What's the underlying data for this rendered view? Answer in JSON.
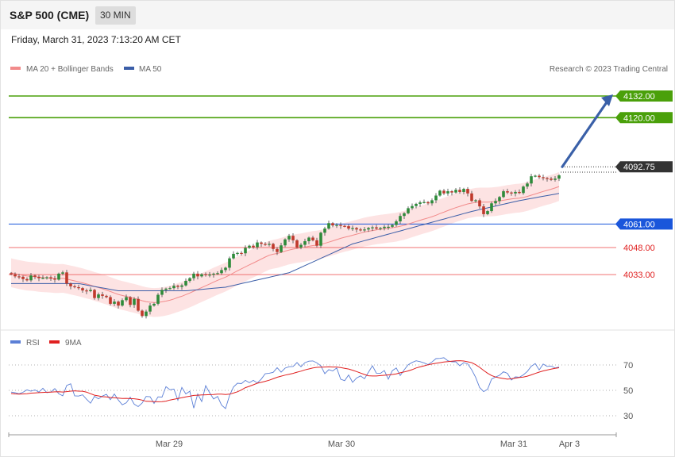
{
  "header": {
    "title": "S&P 500 (CME)",
    "timeframe": "30 MIN"
  },
  "datetime": "Friday, March 31, 2023 7:13:20 AM CET",
  "credit": "Research © 2023 Trading Central",
  "legend_price": [
    {
      "label": "MA 20 + Bollinger Bands",
      "color": "#f28b8b"
    },
    {
      "label": "MA 50",
      "color": "#3b5ea8"
    }
  ],
  "legend_rsi": [
    {
      "label": "RSI",
      "color": "#5b7fd6"
    },
    {
      "label": "9MA",
      "color": "#e02020"
    }
  ],
  "colors": {
    "up": "#2e8b3a",
    "down": "#c0392b",
    "resistance": "#4aa00a",
    "pivot": "#1a56db",
    "support": "#f07070",
    "current": "#333333",
    "arrow": "#3a60a8",
    "band_fill": "#fde3e3"
  },
  "chart_data": {
    "type": "candlestick",
    "price_axis": {
      "ylim": [
        4004,
        4143
      ]
    },
    "levels": [
      {
        "value": 4132.0,
        "label": "4132.00",
        "kind": "resistance"
      },
      {
        "value": 4120.0,
        "label": "4120.00",
        "kind": "resistance"
      },
      {
        "value": 4092.75,
        "label": "4092.75",
        "kind": "current"
      },
      {
        "value": 4061.0,
        "label": "4061.00",
        "kind": "pivot"
      },
      {
        "value": 4048.0,
        "label": "4048.00",
        "kind": "support"
      },
      {
        "value": 4033.0,
        "label": "4033.00",
        "kind": "support"
      }
    ],
    "x_ticks": [
      "Mar 29",
      "Mar 30",
      "Mar 31",
      "Apr 3"
    ],
    "close": [
      4033.2,
      4032.0,
      4031.8,
      4030.5,
      4029.8,
      4032.5,
      4031.8,
      4031.0,
      4031.2,
      4031.5,
      4030.8,
      4030.2,
      4033.5,
      4034.2,
      4028.0,
      4026.5,
      4026.0,
      4025.5,
      4024.2,
      4023.8,
      4024.5,
      4020.0,
      4022.0,
      4021.2,
      4020.5,
      4016.8,
      4018.0,
      4015.8,
      4018.8,
      4020.5,
      4016.2,
      4019.5,
      4013.0,
      4010.0,
      4012.5,
      4015.8,
      4016.8,
      4021.8,
      4024.5,
      4025.2,
      4025.5,
      4026.8,
      4026.2,
      4027.0,
      4029.5,
      4031.0,
      4033.5,
      4032.0,
      4033.2,
      4032.8,
      4033.0,
      4033.5,
      4033.8,
      4035.5,
      4036.8,
      4042.0,
      4044.5,
      4045.0,
      4044.8,
      4047.8,
      4049.0,
      4048.2,
      4050.8,
      4050.0,
      4049.5,
      4050.0,
      4047.2,
      4045.5,
      4049.2,
      4052.5,
      4054.5,
      4052.0,
      4048.0,
      4049.5,
      4051.5,
      4053.5,
      4052.0,
      4049.0,
      4056.2,
      4058.5,
      4061.5,
      4060.2,
      4060.5,
      4060.0,
      4059.8,
      4058.5,
      4058.8,
      4058.0,
      4057.5,
      4058.0,
      4058.8,
      4059.2,
      4058.5,
      4058.8,
      4059.5,
      4059.5,
      4060.5,
      4062.5,
      4065.5,
      4067.0,
      4069.8,
      4071.0,
      4072.2,
      4073.0,
      4073.2,
      4072.5,
      4074.2,
      4076.8,
      4079.5,
      4078.0,
      4079.2,
      4078.5,
      4080.0,
      4078.8,
      4080.5,
      4078.0,
      4073.8,
      4074.2,
      4070.8,
      4066.5,
      4068.2,
      4072.5,
      4073.8,
      4076.0,
      4079.2,
      4078.5,
      4078.0,
      4078.8,
      4078.2,
      4081.8,
      4083.5,
      4087.5,
      4087.8,
      4087.0,
      4086.5,
      4086.2,
      4085.5,
      4086.2,
      4088.0
    ],
    "ma20": [
      4034,
      4033.5,
      4033,
      4032.6,
      4032.2,
      4032,
      4031.8,
      4031.5,
      4031.3,
      4031.2,
      4031,
      4030.8,
      4030.8,
      4030.9,
      4030.5,
      4030,
      4029.5,
      4029,
      4028.4,
      4027.8,
      4027.2,
      4026.4,
      4025.8,
      4025.1,
      4024.4,
      4023.6,
      4022.8,
      4022,
      4021.4,
      4020.9,
      4020.3,
      4019.8,
      4019.2,
      4018.5,
      4018,
      4017.7,
      4017.5,
      4017.6,
      4017.9,
      4018.3,
      4018.8,
      4019.5,
      4020.3,
      4021,
      4021.9,
      4022.8,
      4023.8,
      4024.8,
      4025.8,
      4026.8,
      4027.8,
      4028.8,
      4029.8,
      4030.7,
      4031.6,
      4032.7,
      4033.9,
      4035.1,
      4036.2,
      4037.3,
      4038.4,
      4039.4,
      4040.5,
      4041.6,
      4042.7,
      4043.7,
      4044.3,
      4044.7,
      4045.3,
      4046,
      4046.6,
      4047.1,
      4047.5,
      4047.8,
      4048.2,
      4048.7,
      4049.1,
      4049.3,
      4049.8,
      4050.3,
      4051,
      4051.7,
      4052.4,
      4053.1,
      4053.7,
      4054.2,
      4054.8,
      4055.4,
      4056,
      4056.6,
      4057,
      4057.4,
      4057.8,
      4058.1,
      4058.4,
      4058.7,
      4059,
      4059.3,
      4059.8,
      4060.3,
      4061,
      4061.7,
      4062.4,
      4063.1,
      4063.8,
      4064.4,
      4065.1,
      4065.9,
      4066.8,
      4067.6,
      4068.5,
      4069.3,
      4070.1,
      4070.8,
      4071.5,
      4072.2,
      4072.6,
      4073,
      4073.2,
      4073.2,
      4073.2,
      4073.3,
      4073.5,
      4073.8,
      4074.2,
      4074.6,
      4074.9,
      4075.2,
      4075.4,
      4075.8,
      4076.3,
      4077,
      4077.7,
      4078.4,
      4079.1,
      4079.7,
      4080.3,
      4081,
      4081.8
    ],
    "ma50": [
      4028.0,
      4028.0,
      4028.0,
      4028.0,
      4028.0,
      4028.0,
      4028.0,
      4028.0,
      4028.0,
      4028.0,
      4028.0,
      4028.0,
      4028.0,
      4028.0,
      4028.0,
      4028.0,
      4028.0,
      4028.0,
      4027.6,
      4027.2,
      4026.8,
      4026.4,
      4026.0,
      4025.6,
      4025.2,
      4024.8,
      4024.4,
      4024.0,
      4024.0,
      4024.0,
      4024.0,
      4024.0,
      4024.0,
      4024.0,
      4024.0,
      4024.0,
      4024.0,
      4024.0,
      4024.0,
      4024.0,
      4024.0,
      4024.0,
      4024.0,
      4024.0,
      4024.0,
      4024.2,
      4024.4,
      4024.6,
      4024.8,
      4025.0,
      4025.2,
      4025.4,
      4025.6,
      4025.8,
      4026.0,
      4026.5,
      4027.0,
      4027.5,
      4028.0,
      4028.5,
      4029.0,
      4029.5,
      4030.0,
      4030.5,
      4031.0,
      4031.5,
      4032.0,
      4032.5,
      4033.0,
      4033.5,
      4034.0,
      4035.0,
      4036.0,
      4037.0,
      4038.0,
      4039.0,
      4040.0,
      4041.0,
      4042.0,
      4043.0,
      4044.0,
      4045.0,
      4046.0,
      4047.0,
      4048.0,
      4049.0,
      4050.0,
      4050.6,
      4051.2,
      4051.8,
      4052.4,
      4053.0,
      4053.6,
      4054.2,
      4054.8,
      4055.4,
      4056.0,
      4056.6,
      4057.2,
      4057.8,
      4058.4,
      4059.0,
      4059.6,
      4060.2,
      4060.8,
      4061.4,
      4062.0,
      4062.6,
      4063.2,
      4063.8,
      4064.4,
      4065.0,
      4065.6,
      4066.2,
      4066.8,
      4067.4,
      4068.0,
      4068.5,
      4069.0,
      4069.5,
      4070.0,
      4070.5,
      4071.0,
      4071.5,
      4072.0,
      4072.5,
      4073.0,
      4073.5,
      4074.0,
      4074.4,
      4074.8,
      4075.2,
      4075.6,
      4076.0,
      4076.4,
      4076.8,
      4077.2,
      4077.6,
      4078.0
    ],
    "bb_width": 8,
    "forecast": {
      "from": 4092.75,
      "to": 4132.0
    },
    "rsi_axis": {
      "ylim": [
        20,
        80
      ],
      "ticks": [
        70,
        50,
        30
      ]
    },
    "rsi": [
      48.6,
      48.1,
      47.3,
      48.5,
      50.4,
      49.4,
      50.3,
      48.6,
      51.6,
      48.2,
      48.7,
      51.4,
      47.3,
      45.7,
      53.9,
      55.2,
      45.6,
      45.5,
      46.5,
      43.0,
      39.9,
      45.3,
      43.3,
      45.5,
      46.9,
      42.7,
      47.1,
      42.4,
      38.6,
      40.2,
      44.6,
      39.1,
      37.2,
      40.0,
      45.2,
      45.0,
      39.7,
      44.9,
      44.7,
      52.9,
      50.5,
      51.0,
      42.2,
      52.3,
      47.2,
      49.3,
      36.0,
      47.1,
      41.2,
      53.7,
      48.1,
      43.2,
      45.2,
      38.4,
      35.6,
      45.9,
      52.6,
      55.6,
      55.3,
      57.9,
      56.0,
      57.9,
      55.8,
      58.9,
      63.1,
      63.5,
      64.2,
      67.9,
      64.3,
      67.5,
      68.6,
      68.8,
      71.9,
      68.6,
      71.8,
      73.0,
      73.2,
      71.6,
      69.4,
      63.1,
      66.3,
      65.3,
      67.6,
      58.8,
      57.6,
      62.1,
      56.3,
      59.7,
      61.4,
      59.1,
      64.3,
      69.4,
      63.5,
      63.4,
      65.6,
      58.8,
      65.5,
      67.6,
      61.7,
      66.2,
      70.2,
      72.0,
      73.3,
      72.6,
      71.6,
      70.3,
      72.4,
      75.0,
      75.2,
      75.7,
      73.3,
      72.5,
      72.5,
      69.4,
      71.8,
      70.8,
      66.2,
      60.2,
      52.2,
      49.0,
      50.8,
      58.9,
      60.5,
      61.9,
      64.7,
      63.4,
      58.2,
      60.6,
      60.3,
      62.2,
      64.9,
      69.0,
      71.1,
      66.1,
      70.7,
      68.9,
      69.1,
      67.6,
      68.4
    ],
    "rsi_ma": [
      47.5,
      47.2,
      47.0,
      47.2,
      47.4,
      47.8,
      48.0,
      48.2,
      48.4,
      48.5,
      48.6,
      48.8,
      48.9,
      48.7,
      49.0,
      49.4,
      49.6,
      49.4,
      49.3,
      48.6,
      47.4,
      46.2,
      45.6,
      45.0,
      44.9,
      44.4,
      44.1,
      43.9,
      43.6,
      43.7,
      43.5,
      43.4,
      43.0,
      42.3,
      41.4,
      41.3,
      41.1,
      41.0,
      41.1,
      41.5,
      42.4,
      43.0,
      43.6,
      44.2,
      44.9,
      45.4,
      46.0,
      46.2,
      46.4,
      46.5,
      46.6,
      46.7,
      47.0,
      47.0,
      46.7,
      47.0,
      47.9,
      48.9,
      50.4,
      52.1,
      53.2,
      54.4,
      55.6,
      56.3,
      57.1,
      58.0,
      59.1,
      60.3,
      61.2,
      62.0,
      62.7,
      63.4,
      64.3,
      65.1,
      66.1,
      66.9,
      67.6,
      68.1,
      68.3,
      68.4,
      68.5,
      68.4,
      68.4,
      68.0,
      67.4,
      66.8,
      65.9,
      64.8,
      63.6,
      62.5,
      61.5,
      61.3,
      61.3,
      61.6,
      61.9,
      62.2,
      62.5,
      63.0,
      63.8,
      64.5,
      65.3,
      66.3,
      67.6,
      68.5,
      69.3,
      70.1,
      70.8,
      71.3,
      71.8,
      72.3,
      72.7,
      73.0,
      73.3,
      73.4,
      73.1,
      72.5,
      71.8,
      70.2,
      68.1,
      65.7,
      63.5,
      61.7,
      60.5,
      59.9,
      59.3,
      58.8,
      59.1,
      59.6,
      60.1,
      60.5,
      61.2,
      62.2,
      63.3,
      64.4,
      65.3,
      66.0,
      66.7,
      67.3,
      67.8
    ]
  }
}
